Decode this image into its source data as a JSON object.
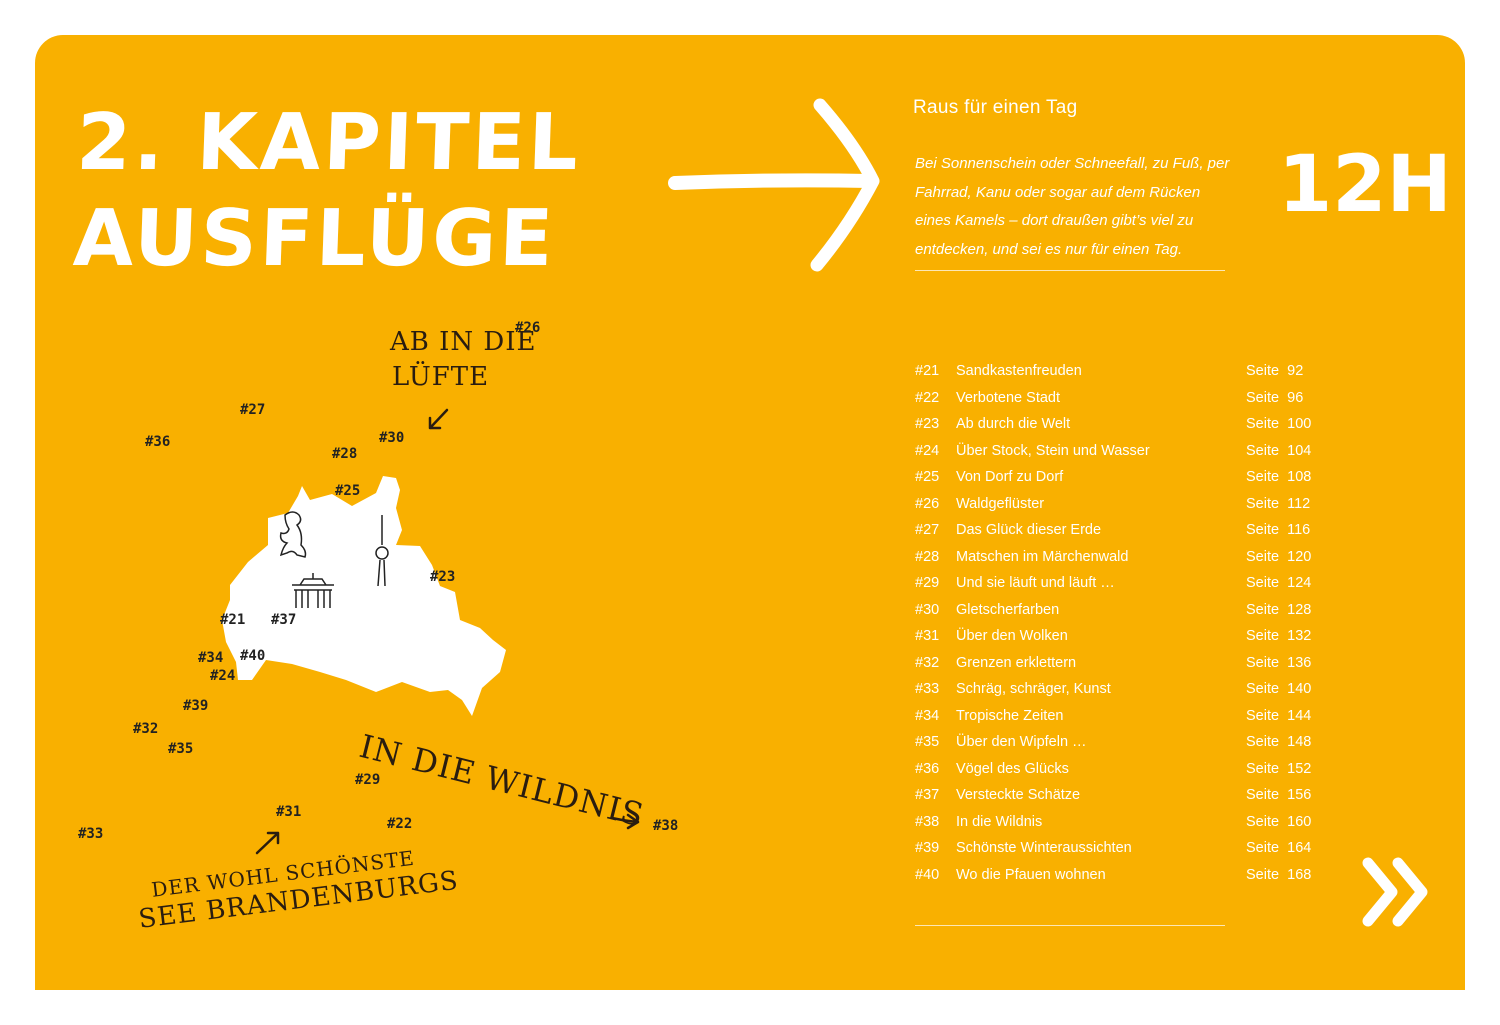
{
  "chapter": {
    "line1": "2. KAPITEL",
    "line2": "AUSFLÜGE"
  },
  "subtitle": "Raus für einen Tag",
  "intro": "Bei Sonnenschein oder Schneefall, zu Fuß, per Fahrrad, Kanu oder sogar auf dem Rücken eines Kamels – dort draußen gibt’s viel zu entdecken, und sei es nur für einen Tag.",
  "duration": "12H",
  "colors": {
    "background": "#F9B000",
    "text": "#FFFFFF",
    "map_ink": "#222222"
  },
  "toc": [
    {
      "num": "#21",
      "title": "Sandkastenfreuden",
      "page_label": "Seite",
      "page": "92"
    },
    {
      "num": "#22",
      "title": "Verbotene Stadt",
      "page_label": "Seite",
      "page": "96"
    },
    {
      "num": "#23",
      "title": "Ab durch die Welt",
      "page_label": "Seite",
      "page": "100"
    },
    {
      "num": "#24",
      "title": "Über Stock, Stein und Wasser",
      "page_label": "Seite",
      "page": "104"
    },
    {
      "num": "#25",
      "title": "Von Dorf zu Dorf",
      "page_label": "Seite",
      "page": "108"
    },
    {
      "num": "#26",
      "title": "Waldgeflüster",
      "page_label": "Seite",
      "page": "112"
    },
    {
      "num": "#27",
      "title": "Das Glück dieser Erde",
      "page_label": "Seite",
      "page": "116"
    },
    {
      "num": "#28",
      "title": "Matschen im Märchenwald",
      "page_label": "Seite",
      "page": "120"
    },
    {
      "num": "#29",
      "title": "Und sie läuft und läuft …",
      "page_label": "Seite",
      "page": "124"
    },
    {
      "num": "#30",
      "title": "Gletscherfarben",
      "page_label": "Seite",
      "page": "128"
    },
    {
      "num": "#31",
      "title": "Über den Wolken",
      "page_label": "Seite",
      "page": "132"
    },
    {
      "num": "#32",
      "title": "Grenzen erklettern",
      "page_label": "Seite",
      "page": "136"
    },
    {
      "num": "#33",
      "title": "Schräg, schräger, Kunst",
      "page_label": "Seite",
      "page": "140"
    },
    {
      "num": "#34",
      "title": "Tropische Zeiten",
      "page_label": "Seite",
      "page": "144"
    },
    {
      "num": "#35",
      "title": "Über den Wipfeln …",
      "page_label": "Seite",
      "page": "148"
    },
    {
      "num": "#36",
      "title": "Vögel des Glücks",
      "page_label": "Seite",
      "page": "152"
    },
    {
      "num": "#37",
      "title": "Versteckte Schätze",
      "page_label": "Seite",
      "page": "156"
    },
    {
      "num": "#38",
      "title": "In die Wildnis",
      "page_label": "Seite",
      "page": "160"
    },
    {
      "num": "#39",
      "title": "Schönste Winteraussichten",
      "page_label": "Seite",
      "page": "164"
    },
    {
      "num": "#40",
      "title": "Wo die Pfauen wohnen",
      "page_label": "Seite",
      "page": "168"
    }
  ],
  "map": {
    "callouts": {
      "air": "AB IN DIE",
      "air2": "LÜFTE",
      "wild": "IN DIE WILDNIS",
      "lake1": "DER WOHL SCHÖNSTE",
      "lake2": "SEE BRANDENBURGS"
    },
    "markers": [
      "#21",
      "#22",
      "#23",
      "#24",
      "#25",
      "#26",
      "#27",
      "#28",
      "#29",
      "#30",
      "#31",
      "#32",
      "#33",
      "#34",
      "#35",
      "#36",
      "#37",
      "#38",
      "#39",
      "#40"
    ],
    "icons": [
      "berlin-bear-icon",
      "brandenburg-gate-icon",
      "tv-tower-icon"
    ]
  },
  "next_icon": "double-chevron-right-icon"
}
